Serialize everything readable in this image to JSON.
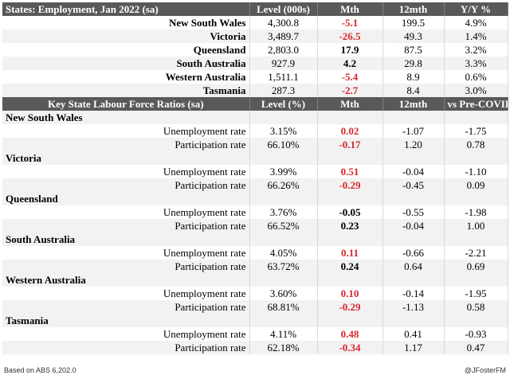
{
  "employment": {
    "headers": [
      "States: Employment, Jan 2022 (sa)",
      "Level (000s)",
      "Mth",
      "12mth",
      "Y/Y %"
    ],
    "rows": [
      {
        "state": "New South Wales",
        "level": "4,300.8",
        "mth": "-5.1",
        "mth_color": "neg",
        "twelve": "199.5",
        "yy": "4.9%"
      },
      {
        "state": "Victoria",
        "level": "3,489.7",
        "mth": "-26.5",
        "mth_color": "neg",
        "twelve": "49.3",
        "yy": "1.4%"
      },
      {
        "state": "Queensland",
        "level": "2,803.0",
        "mth": "17.9",
        "mth_color": "pos",
        "twelve": "87.5",
        "yy": "3.2%"
      },
      {
        "state": "South Australia",
        "level": "927.9",
        "mth": "4.2",
        "mth_color": "pos",
        "twelve": "29.8",
        "yy": "3.3%"
      },
      {
        "state": "Western Australia",
        "level": "1,511.1",
        "mth": "-5.4",
        "mth_color": "neg",
        "twelve": "8.9",
        "yy": "0.6%"
      },
      {
        "state": "Tasmania",
        "level": "287.3",
        "mth": "-2.7",
        "mth_color": "neg",
        "twelve": "8.4",
        "yy": "3.0%"
      }
    ]
  },
  "ratios": {
    "headers": [
      "Key State Labour Force Ratios (sa)",
      "Level (%)",
      "Mth",
      "12mth",
      "vs Pre-COVID"
    ],
    "states": [
      {
        "name": "New South Wales",
        "rows": [
          {
            "label": "Unemployment rate",
            "level": "3.15%",
            "mth": "0.02",
            "mth_color": "neg",
            "twelve": "-1.07",
            "pre": "-1.75"
          },
          {
            "label": "Participation rate",
            "level": "66.10%",
            "mth": "-0.17",
            "mth_color": "neg",
            "twelve": "1.20",
            "pre": "0.78"
          }
        ]
      },
      {
        "name": "Victoria",
        "rows": [
          {
            "label": "Unemployment rate",
            "level": "3.99%",
            "mth": "0.51",
            "mth_color": "neg",
            "twelve": "-0.04",
            "pre": "-1.10"
          },
          {
            "label": "Participation rate",
            "level": "66.26%",
            "mth": "-0.29",
            "mth_color": "neg",
            "twelve": "-0.45",
            "pre": "0.09"
          }
        ]
      },
      {
        "name": "Queensland",
        "rows": [
          {
            "label": "Unemployment rate",
            "level": "3.76%",
            "mth": "-0.05",
            "mth_color": "pos",
            "twelve": "-0.55",
            "pre": "-1.98"
          },
          {
            "label": "Participation rate",
            "level": "66.52%",
            "mth": "0.23",
            "mth_color": "pos",
            "twelve": "-0.04",
            "pre": "1.00"
          }
        ]
      },
      {
        "name": "South Australia",
        "rows": [
          {
            "label": "Unemployment rate",
            "level": "4.05%",
            "mth": "0.11",
            "mth_color": "neg",
            "twelve": "-0.66",
            "pre": "-2.21"
          },
          {
            "label": "Participation rate",
            "level": "63.72%",
            "mth": "0.24",
            "mth_color": "pos",
            "twelve": "0.64",
            "pre": "0.69"
          }
        ]
      },
      {
        "name": "Western Australia",
        "rows": [
          {
            "label": "Unemployment rate",
            "level": "3.60%",
            "mth": "0.10",
            "mth_color": "neg",
            "twelve": "-0.14",
            "pre": "-1.95"
          },
          {
            "label": "Participation rate",
            "level": "68.81%",
            "mth": "-0.29",
            "mth_color": "neg",
            "twelve": "-1.13",
            "pre": "0.58"
          }
        ]
      },
      {
        "name": "Tasmania",
        "rows": [
          {
            "label": "Unemployment rate",
            "level": "4.11%",
            "mth": "0.48",
            "mth_color": "neg",
            "twelve": "0.41",
            "pre": "-0.93"
          },
          {
            "label": "Participation rate",
            "level": "62.18%",
            "mth": "-0.34",
            "mth_color": "neg",
            "twelve": "1.17",
            "pre": "0.47"
          }
        ]
      }
    ]
  },
  "footer": {
    "source": "Based on ABS 6,202.0",
    "handle": "@JFosterFM"
  },
  "colors": {
    "header_bg": "#595959",
    "negative": "#d9262e",
    "positive": "#000000",
    "shade": "#f2f2f2"
  }
}
